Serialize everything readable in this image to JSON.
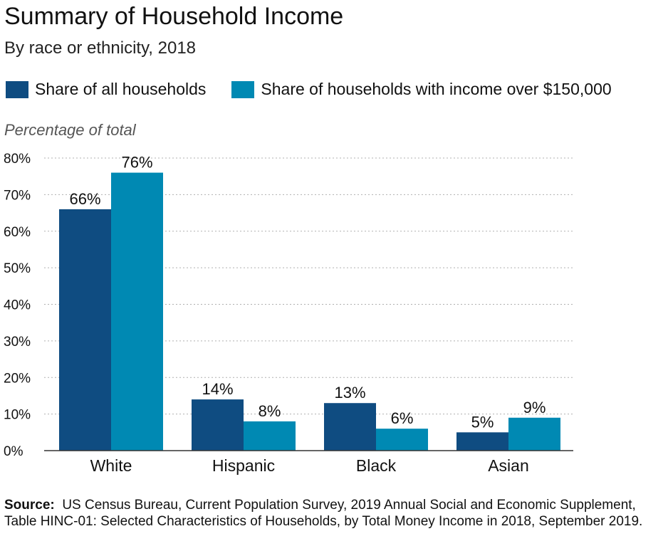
{
  "header": {
    "title": "Summary of Household Income",
    "subtitle": "By race or ethnicity, 2018"
  },
  "footer": {
    "source_label": "Source:",
    "source_text": "US Census Bureau, Current Population Survey, 2019 Annual Social and Economic Supplement, Table HINC-01: Selected Characteristics of Households, by Total Money Income in 2018, September 2019."
  },
  "chart_data": {
    "type": "bar",
    "title": "Summary of Household Income",
    "subtitle": "By race or ethnicity, 2018",
    "ylabel": "Percentage of total",
    "xlabel": "",
    "categories": [
      "White",
      "Hispanic",
      "Black",
      "Asian"
    ],
    "series": [
      {
        "name": "Share of all households",
        "values": [
          66,
          14,
          13,
          5
        ],
        "labels": [
          "66%",
          "14%",
          "13%",
          "5%"
        ],
        "color": "#0f4c81"
      },
      {
        "name": "Share of households with income over $150,000",
        "values": [
          76,
          8,
          6,
          9
        ],
        "labels": [
          "76%",
          "8%",
          "6%",
          "9%"
        ],
        "color": "#0089b3"
      }
    ],
    "ylim": [
      0,
      80
    ],
    "yticks": [
      0,
      10,
      20,
      30,
      40,
      50,
      60,
      70,
      80
    ],
    "ytick_labels": [
      "0%",
      "10%",
      "20%",
      "30%",
      "40%",
      "50%",
      "60%",
      "70%",
      "80%"
    ],
    "grid": true,
    "legend_position": "top-left"
  }
}
